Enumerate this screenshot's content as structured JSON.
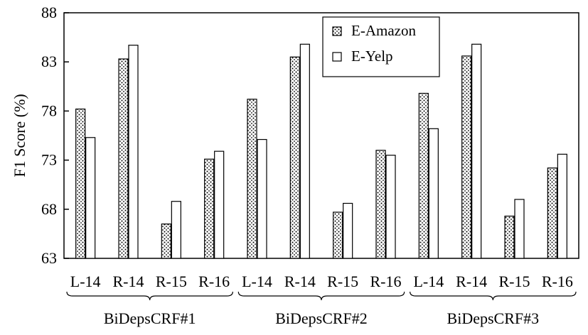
{
  "chart_data": {
    "type": "bar",
    "ylabel": "F1 Score (%)",
    "ylim": [
      63,
      88
    ],
    "yticks": [
      "63",
      "68",
      "73",
      "78",
      "83",
      "88"
    ],
    "groups": [
      {
        "name": "BiDepsCRF#1",
        "categories": [
          "L-14",
          "R-14",
          "R-15",
          "R-16"
        ]
      },
      {
        "name": "BiDepsCRF#2",
        "categories": [
          "L-14",
          "R-14",
          "R-15",
          "R-16"
        ]
      },
      {
        "name": "BiDepsCRF#3",
        "categories": [
          "L-14",
          "R-14",
          "R-15",
          "R-16"
        ]
      }
    ],
    "series": [
      {
        "name": "E-Amazon",
        "pattern": "dotted",
        "values": [
          78.2,
          83.3,
          66.5,
          73.1,
          79.2,
          83.5,
          67.7,
          74.0,
          79.8,
          83.6,
          67.3,
          72.2
        ]
      },
      {
        "name": "E-Yelp",
        "pattern": "hollow",
        "values": [
          75.3,
          84.7,
          68.8,
          73.9,
          75.1,
          84.8,
          68.6,
          73.5,
          76.2,
          84.8,
          69.0,
          73.6
        ]
      }
    ],
    "legend_position": "top-right"
  }
}
